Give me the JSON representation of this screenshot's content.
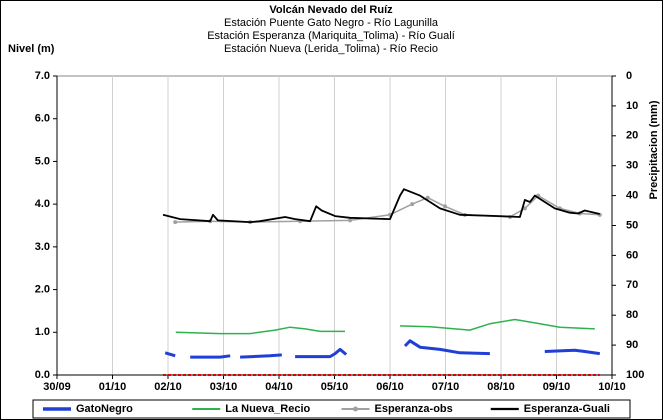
{
  "chart_data": {
    "type": "line",
    "title": "Volcán Nevado del Ruíz",
    "subtitle": [
      "Estación Puente Gato Negro - Río Lagunilla",
      "Estación Esperanza (Mariquita_Tolima) - Río Gualí",
      "Estación Nueva (Lerida_Tolima) - Río Recio"
    ],
    "y_label": "Nivel (m)",
    "y2_label": "Precipitacion (mm)",
    "xlim": [
      0,
      10
    ],
    "xticks": [
      {
        "value": 0,
        "label": "30/09"
      },
      {
        "value": 1,
        "label": "01/10"
      },
      {
        "value": 2,
        "label": "02/10"
      },
      {
        "value": 3,
        "label": "03/10"
      },
      {
        "value": 4,
        "label": "04/10"
      },
      {
        "value": 5,
        "label": "05/10"
      },
      {
        "value": 6,
        "label": "06/10"
      },
      {
        "value": 7,
        "label": "07/10"
      },
      {
        "value": 8,
        "label": "08/10"
      },
      {
        "value": 9,
        "label": "09/10"
      },
      {
        "value": 10,
        "label": "10/10"
      }
    ],
    "ylim": [
      0,
      7
    ],
    "yticks": [
      {
        "value": 0,
        "label": "0.0"
      },
      {
        "value": 1,
        "label": "1.0"
      },
      {
        "value": 2,
        "label": "2.0"
      },
      {
        "value": 3,
        "label": "3.0"
      },
      {
        "value": 4,
        "label": "4.0"
      },
      {
        "value": 5,
        "label": "5.0"
      },
      {
        "value": 6,
        "label": "6.0"
      },
      {
        "value": 7,
        "label": "7.0"
      }
    ],
    "y2lim": [
      0,
      100
    ],
    "y2_inverted": true,
    "y2ticks": [
      0,
      10,
      20,
      30,
      40,
      50,
      60,
      70,
      80,
      90,
      100
    ],
    "grid": "x",
    "legend": "bottom",
    "series": [
      {
        "name": "GatoNegro",
        "color": "#1f3fd6",
        "width": 3,
        "x": [
          1.95,
          2.13,
          null,
          2.4,
          2.94,
          3.12,
          null,
          3.3,
          3.84,
          4.05,
          null,
          4.29,
          4.92,
          5.01,
          5.1,
          5.21,
          null,
          6.27,
          6.36,
          6.54,
          6.9,
          7.26,
          7.8,
          null,
          8.79,
          9.33,
          9.51,
          9.78
        ],
        "values": [
          0.52,
          0.45,
          null,
          0.42,
          0.42,
          0.45,
          null,
          0.42,
          0.45,
          0.47,
          null,
          0.43,
          0.43,
          0.5,
          0.6,
          0.48,
          null,
          0.68,
          0.8,
          0.65,
          0.6,
          0.52,
          0.5,
          null,
          0.55,
          0.58,
          0.55,
          0.5
        ]
      },
      {
        "name": "La Nueva_Recio",
        "color": "#2eb24f",
        "width": 1.5,
        "x": [
          2.14,
          2.94,
          3.48,
          3.93,
          4.2,
          4.47,
          4.74,
          5.19,
          null,
          6.18,
          6.72,
          7.44,
          7.8,
          8.25,
          8.61,
          9.06,
          9.69
        ],
        "values": [
          1.0,
          0.97,
          0.97,
          1.05,
          1.12,
          1.08,
          1.02,
          1.02,
          null,
          1.15,
          1.13,
          1.05,
          1.2,
          1.3,
          1.22,
          1.12,
          1.08
        ]
      },
      {
        "name": "Esperanza-obs",
        "color": "#a0a0a0",
        "width": 1.5,
        "marker": true,
        "x": [
          2.13,
          2.76,
          3.48,
          4.38,
          5.28,
          6.0,
          6.4,
          6.68,
          6.99,
          7.35,
          8.16,
          8.43,
          8.67,
          9.06,
          9.42,
          9.78
        ],
        "values": [
          3.58,
          3.6,
          3.58,
          3.6,
          3.62,
          3.75,
          4.0,
          4.15,
          3.95,
          3.75,
          3.7,
          3.9,
          4.2,
          3.9,
          3.78,
          3.75
        ]
      },
      {
        "name": "Esperanza-Guali",
        "color": "#000000",
        "width": 1.8,
        "x": [
          1.91,
          2.22,
          2.76,
          2.81,
          2.9,
          3.48,
          3.66,
          4.11,
          4.29,
          4.56,
          4.67,
          4.77,
          5.01,
          5.28,
          6.0,
          6.18,
          6.25,
          6.54,
          6.9,
          7.26,
          7.98,
          8.34,
          8.43,
          8.52,
          8.61,
          8.79,
          8.97,
          9.24,
          9.39,
          9.51,
          9.78
        ],
        "values": [
          3.75,
          3.65,
          3.6,
          3.75,
          3.62,
          3.58,
          3.6,
          3.7,
          3.65,
          3.6,
          3.95,
          3.85,
          3.72,
          3.68,
          3.65,
          4.2,
          4.35,
          4.2,
          3.9,
          3.75,
          3.72,
          3.7,
          4.1,
          4.05,
          4.2,
          4.05,
          3.9,
          3.8,
          3.78,
          3.85,
          3.77
        ]
      },
      {
        "color": "#e00000",
        "width": 2,
        "dash": true,
        "x": [
          1.91,
          9.78
        ],
        "values": [
          0,
          0
        ]
      }
    ]
  }
}
